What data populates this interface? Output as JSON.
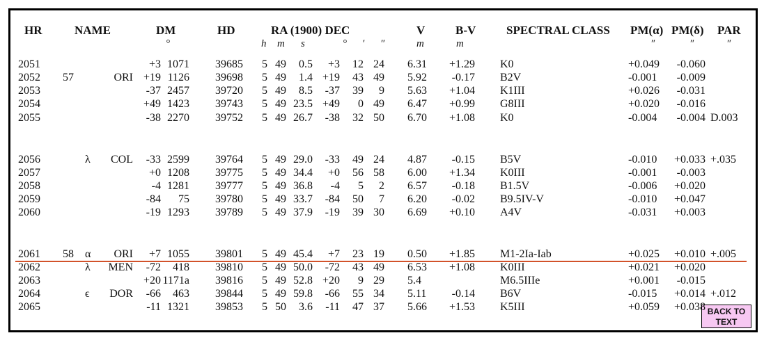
{
  "header": {
    "columns": [
      "HR",
      "NAME",
      "DM",
      "HD",
      "RA (1900) DEC",
      "V",
      "B-V",
      "SPECTRAL CLASS",
      "PM(α)",
      "PM(δ)",
      "PAR"
    ],
    "units": [
      "°",
      "h",
      "m",
      "s",
      "°",
      "′",
      "″",
      "m",
      "m",
      "″",
      "″",
      "″"
    ]
  },
  "table": {
    "rows": [
      {
        "hr": "2051",
        "dm_zone": "+3",
        "dm_num": "1071",
        "hd": "39685",
        "ra_h": "5",
        "ra_m": "49",
        "ra_s": "0.5",
        "dec_d": "+3",
        "dec_m": "12",
        "dec_s": "24",
        "v": "6.31",
        "bv": "+1.29",
        "sp": "K0",
        "pma": "+0.049",
        "pmd": "-0.060"
      },
      {
        "hr": "2052",
        "num": "57",
        "con": "ORI",
        "dm_zone": "+19",
        "dm_num": "1126",
        "hd": "39698",
        "ra_h": "5",
        "ra_m": "49",
        "ra_s": "1.4",
        "dec_d": "+19",
        "dec_m": "43",
        "dec_s": "49",
        "v": "5.92",
        "bv": "-0.17",
        "sp": "B2V",
        "pma": "-0.001",
        "pmd": "-0.009"
      },
      {
        "hr": "2053",
        "dm_zone": "-37",
        "dm_num": "2457",
        "hd": "39720",
        "ra_h": "5",
        "ra_m": "49",
        "ra_s": "8.5",
        "dec_d": "-37",
        "dec_m": "39",
        "dec_s": "9",
        "v": "5.63",
        "bv": "+1.04",
        "sp": "K1III",
        "pma": "+0.026",
        "pmd": "-0.031"
      },
      {
        "hr": "2054",
        "dm_zone": "+49",
        "dm_num": "1423",
        "hd": "39743",
        "ra_h": "5",
        "ra_m": "49",
        "ra_s": "23.5",
        "dec_d": "+49",
        "dec_m": "0",
        "dec_s": "49",
        "v": "6.47",
        "bv": "+0.99",
        "sp": "G8III",
        "pma": "+0.020",
        "pmd": "-0.016"
      },
      {
        "hr": "2055",
        "dm_zone": "-38",
        "dm_num": "2270",
        "hd": "39752",
        "ra_h": "5",
        "ra_m": "49",
        "ra_s": "26.7",
        "dec_d": "-38",
        "dec_m": "32",
        "dec_s": "50",
        "v": "6.70",
        "bv": "+1.08",
        "sp": "K0",
        "pma": "-0.004",
        "pmd": "-0.004",
        "par": "D.003"
      },
      {
        "hr": "2056",
        "greek": "λ",
        "con": "COL",
        "dm_zone": "-33",
        "dm_num": "2599",
        "hd": "39764",
        "ra_h": "5",
        "ra_m": "49",
        "ra_s": "29.0",
        "dec_d": "-33",
        "dec_m": "49",
        "dec_s": "24",
        "v": "4.87",
        "bv": "-0.15",
        "sp": "B5V",
        "pma": "-0.010",
        "pmd": "+0.033",
        "par": "+.035"
      },
      {
        "hr": "2057",
        "dm_zone": "+0",
        "dm_num": "1208",
        "hd": "39775",
        "ra_h": "5",
        "ra_m": "49",
        "ra_s": "34.4",
        "dec_d": "+0",
        "dec_m": "56",
        "dec_s": "58",
        "v": "6.00",
        "bv": "+1.34",
        "sp": "K0III",
        "pma": "-0.001",
        "pmd": "-0.003"
      },
      {
        "hr": "2058",
        "dm_zone": "-4",
        "dm_num": "1281",
        "hd": "39777",
        "ra_h": "5",
        "ra_m": "49",
        "ra_s": "36.8",
        "dec_d": "-4",
        "dec_m": "5",
        "dec_s": "2",
        "v": "6.57",
        "bv": "-0.18",
        "sp": "B1.5V",
        "pma": "-0.006",
        "pmd": "+0.020"
      },
      {
        "hr": "2059",
        "dm_zone": "-84",
        "dm_num": "75",
        "hd": "39780",
        "ra_h": "5",
        "ra_m": "49",
        "ra_s": "33.7",
        "dec_d": "-84",
        "dec_m": "50",
        "dec_s": "7",
        "v": "6.20",
        "bv": "-0.02",
        "sp": "B9.5IV-V",
        "pma": "-0.010",
        "pmd": "+0.047"
      },
      {
        "hr": "2060",
        "dm_zone": "-19",
        "dm_num": "1293",
        "hd": "39789",
        "ra_h": "5",
        "ra_m": "49",
        "ra_s": "37.9",
        "dec_d": "-19",
        "dec_m": "39",
        "dec_s": "30",
        "v": "6.69",
        "bv": "+0.10",
        "sp": "A4V",
        "pma": "-0.031",
        "pmd": "+0.003"
      },
      {
        "hr": "2061",
        "num": "58",
        "greek": "α",
        "con": "ORI",
        "dm_zone": "+7",
        "dm_num": "1055",
        "hd": "39801",
        "ra_h": "5",
        "ra_m": "49",
        "ra_s": "45.4",
        "dec_d": "+7",
        "dec_m": "23",
        "dec_s": "19",
        "v": "0.50",
        "bv": "+1.85",
        "sp": "M1-2Ia-Iab",
        "pma": "+0.025",
        "pmd": "+0.010",
        "par": "+.005"
      },
      {
        "hr": "2062",
        "greek": "λ",
        "con": "MEN",
        "dm_zone": "-72",
        "dm_num": "418",
        "hd": "39810",
        "ra_h": "5",
        "ra_m": "49",
        "ra_s": "50.0",
        "dec_d": "-72",
        "dec_m": "43",
        "dec_s": "49",
        "v": "6.53",
        "bv": "+1.08",
        "sp": "K0III",
        "pma": "+0.021",
        "pmd": "+0.020"
      },
      {
        "hr": "2063",
        "dm_zone": "+20",
        "dm_num": "1171a",
        "hd": "39816",
        "ra_h": "5",
        "ra_m": "49",
        "ra_s": "52.8",
        "dec_d": "+20",
        "dec_m": "9",
        "dec_s": "29",
        "v": "5.4",
        "sp": "M6.5IIIe",
        "pma": "+0.001",
        "pmd": "-0.015"
      },
      {
        "hr": "2064",
        "greek": "ϵ",
        "con": "DOR",
        "dm_zone": "-66",
        "dm_num": "463",
        "hd": "39844",
        "ra_h": "5",
        "ra_m": "49",
        "ra_s": "59.8",
        "dec_d": "-66",
        "dec_m": "55",
        "dec_s": "34",
        "v": "5.11",
        "bv": "-0.14",
        "sp": "B6V",
        "pma": "-0.015",
        "pmd": "+0.014",
        "par": "+.012"
      },
      {
        "hr": "2065",
        "dm_zone": "-11",
        "dm_num": "1321",
        "hd": "39853",
        "ra_h": "5",
        "ra_m": "50",
        "ra_s": "3.6",
        "dec_d": "-11",
        "dec_m": "47",
        "dec_s": "37",
        "v": "5.66",
        "bv": "+1.53",
        "sp": "K5III",
        "pma": "+0.059",
        "pmd": "+0.038"
      }
    ]
  },
  "button": {
    "label": "BACK TO TEXT"
  }
}
